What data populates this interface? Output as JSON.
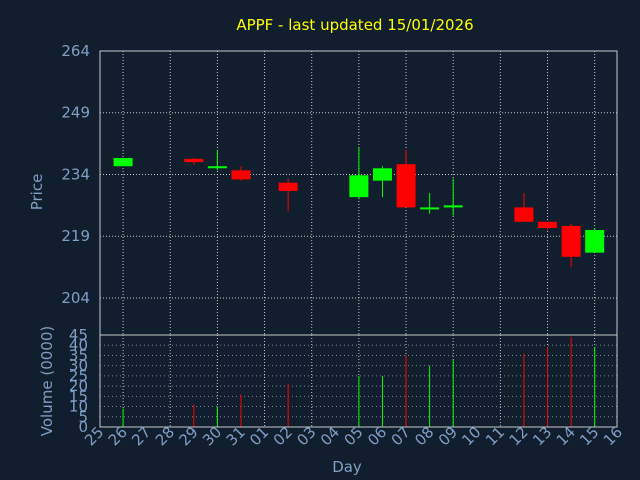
{
  "chart_data": {
    "type": "candlestick",
    "title": "APPF - last updated 15/01/2026",
    "ylabel": "Price",
    "volume_ylabel": "Volume (0000)",
    "xlabel": "Day",
    "x_tick_labels": [
      "25",
      "26",
      "27",
      "28",
      "29",
      "30",
      "31",
      "01",
      "02",
      "03",
      "04",
      "05",
      "06",
      "07",
      "08",
      "09",
      "10",
      "11",
      "12",
      "13",
      "14",
      "15",
      "16"
    ],
    "price_ylim": [
      195,
      264
    ],
    "price_yticks": [
      "264",
      "249",
      "234",
      "219",
      "204"
    ],
    "volume_ylim": [
      0,
      45
    ],
    "volume_yticks": [
      "45",
      "40",
      "35",
      "30",
      "25",
      "20",
      "15",
      "10",
      "5",
      "0"
    ],
    "grid": true,
    "colors": {
      "background": "#111e2e",
      "up": "#00ff00",
      "down": "#ff0000",
      "title": "#ffff00",
      "axis_text": "#7f9fc7",
      "grid": "#c8c8c8"
    },
    "candles": [
      {
        "day": "26",
        "open": 236.0,
        "high": 238.0,
        "low": 236.0,
        "close": 238.0,
        "volume": 9
      },
      {
        "day": "29",
        "open": 237.8,
        "high": 238.0,
        "low": 236.4,
        "close": 237.0,
        "volume": 11
      },
      {
        "day": "30",
        "open": 235.8,
        "high": 240.0,
        "low": 235.0,
        "close": 236.0,
        "volume": 10
      },
      {
        "day": "31",
        "open": 235.0,
        "high": 236.0,
        "low": 232.5,
        "close": 232.8,
        "volume": 16
      },
      {
        "day": "02",
        "open": 232.0,
        "high": 233.0,
        "low": 225.0,
        "close": 230.0,
        "volume": 21
      },
      {
        "day": "05",
        "open": 228.5,
        "high": 240.5,
        "low": 228.0,
        "close": 233.8,
        "volume": 25
      },
      {
        "day": "06",
        "open": 232.5,
        "high": 236.0,
        "low": 228.5,
        "close": 235.5,
        "volume": 25
      },
      {
        "day": "07",
        "open": 236.5,
        "high": 240.0,
        "low": 226.0,
        "close": 226.0,
        "volume": 35
      },
      {
        "day": "08",
        "open": 226.0,
        "high": 229.5,
        "low": 224.5,
        "close": 226.0,
        "volume": 30
      },
      {
        "day": "09",
        "open": 226.0,
        "high": 233.0,
        "low": 224.0,
        "close": 226.5,
        "volume": 33
      },
      {
        "day": "12",
        "open": 226.0,
        "high": 229.5,
        "low": 222.5,
        "close": 222.5,
        "volume": 36
      },
      {
        "day": "13",
        "open": 222.5,
        "high": 222.5,
        "low": 220.5,
        "close": 221.0,
        "volume": 39
      },
      {
        "day": "14",
        "open": 221.5,
        "high": 222.0,
        "low": 211.5,
        "close": 214.0,
        "volume": 44
      },
      {
        "day": "15",
        "open": 215.0,
        "high": 221.0,
        "low": 215.0,
        "close": 220.5,
        "volume": 39
      }
    ]
  }
}
